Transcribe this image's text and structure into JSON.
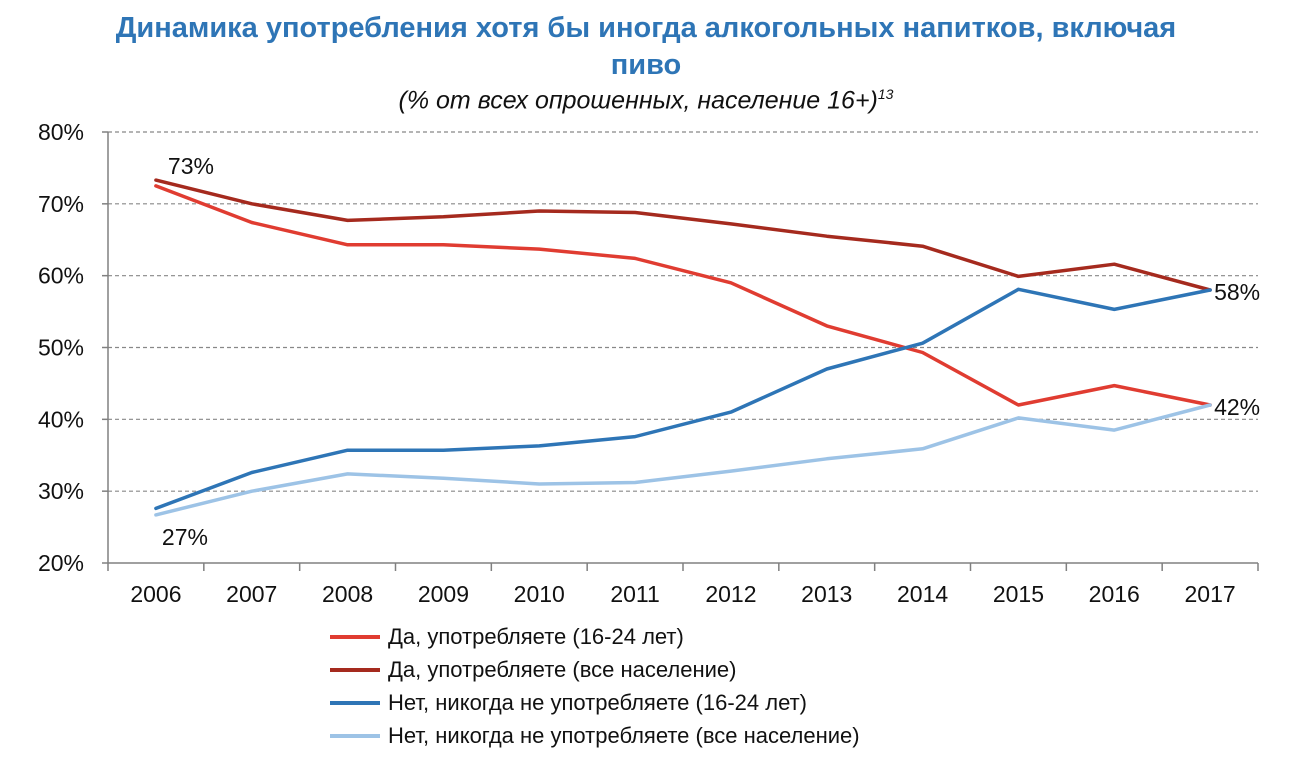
{
  "title": {
    "line1": "Динамика употребления хотя бы иногда алкогольных напитков, включая",
    "line2": "пиво",
    "subtitle": "(% от всех опрошенных, население 16+)",
    "footnote": "13"
  },
  "chart_data": {
    "type": "line",
    "categories": [
      "2006",
      "2007",
      "2008",
      "2009",
      "2010",
      "2011",
      "2012",
      "2013",
      "2014",
      "2015",
      "2016",
      "2017"
    ],
    "ylim": [
      20,
      80
    ],
    "yticks": [
      "20%",
      "30%",
      "40%",
      "50%",
      "60%",
      "70%",
      "80%"
    ],
    "ytick_values": [
      20,
      30,
      40,
      50,
      60,
      70,
      80
    ],
    "grid": true,
    "legend_position": "bottom",
    "series": [
      {
        "name": "Да, употребляете (16-24 лет)",
        "color": "#E03C31",
        "values": [
          72.5,
          67.4,
          64.3,
          64.3,
          63.7,
          62.4,
          59.0,
          53.0,
          49.3,
          42.0,
          44.7,
          42.0
        ]
      },
      {
        "name": "Да, употребляете (все население)",
        "color": "#A52A1E",
        "values": [
          73.3,
          70.0,
          67.7,
          68.2,
          69.0,
          68.8,
          67.2,
          65.5,
          64.1,
          59.9,
          61.6,
          58.0
        ]
      },
      {
        "name": "Нет, никогда не употребляете (16-24 лет)",
        "color": "#2E75B6",
        "values": [
          27.6,
          32.6,
          35.7,
          35.7,
          36.3,
          37.6,
          41.0,
          47.0,
          50.6,
          58.1,
          55.3,
          58.0
        ]
      },
      {
        "name": "Нет, никогда не употребляете (все население)",
        "color": "#9DC3E6",
        "values": [
          26.7,
          30.0,
          32.4,
          31.8,
          31.0,
          31.2,
          32.8,
          34.5,
          35.9,
          40.2,
          38.5,
          42.0
        ]
      }
    ],
    "annotations": [
      {
        "text": "73%",
        "category": "2006",
        "value": 73.3,
        "anchor": "above-right"
      },
      {
        "text": "27%",
        "category": "2006",
        "value": 26.7,
        "anchor": "below-right"
      },
      {
        "text": "58%",
        "category": "2017",
        "value": 58.0,
        "anchor": "right"
      },
      {
        "text": "42%",
        "category": "2017",
        "value": 42.0,
        "anchor": "right"
      }
    ]
  }
}
